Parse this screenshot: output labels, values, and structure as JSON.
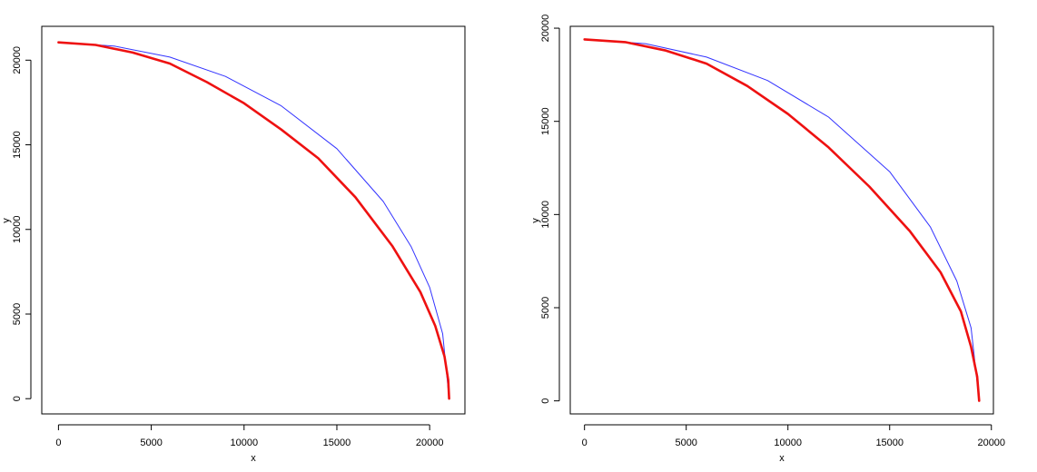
{
  "chart_data": [
    {
      "type": "line",
      "xlabel": "x",
      "ylabel": "y",
      "xlim": [
        -900,
        21900
      ],
      "ylim": [
        -900,
        22000
      ],
      "xticks": [
        0,
        5000,
        10000,
        15000,
        20000
      ],
      "xtick_labels": [
        "0",
        "5000",
        "10000",
        "15000",
        "20000"
      ],
      "yticks": [
        0,
        5000,
        10000,
        15000,
        20000
      ],
      "ytick_labels": [
        "0",
        "5000",
        "10000",
        "15000",
        "20000"
      ],
      "grid": false,
      "series": [
        {
          "color": "#3333ff",
          "style": "thin",
          "x": [
            0,
            3000,
            6000,
            9000,
            12000,
            15000,
            17500,
            19000,
            20000,
            20700,
            21050
          ],
          "y": [
            21050,
            20835,
            20180,
            19040,
            17300,
            14770,
            11650,
            8990,
            6570,
            3830,
            0
          ]
        },
        {
          "color": "#ee1111",
          "style": "thick",
          "x": [
            0,
            2000,
            4000,
            6000,
            8000,
            10000,
            12000,
            14000,
            16000,
            18000,
            19500,
            20300,
            20800,
            21000,
            21050
          ],
          "y": [
            21050,
            20900,
            20450,
            19800,
            18700,
            17450,
            15900,
            14200,
            11900,
            9000,
            6300,
            4300,
            2500,
            1100,
            0
          ]
        }
      ]
    },
    {
      "type": "line",
      "xlabel": "x",
      "ylabel": "y",
      "xlim": [
        -700,
        20100
      ],
      "ylim": [
        -700,
        20100
      ],
      "xticks": [
        0,
        5000,
        10000,
        15000,
        20000
      ],
      "xtick_labels": [
        "0",
        "5000",
        "10000",
        "15000",
        "20000"
      ],
      "yticks": [
        0,
        5000,
        10000,
        15000,
        20000
      ],
      "ytick_labels": [
        "0",
        "5000",
        "10000",
        "15000",
        "20000"
      ],
      "grid": false,
      "series": [
        {
          "color": "#3333ff",
          "style": "thin",
          "x": [
            0,
            3000,
            6000,
            9000,
            12000,
            15000,
            17000,
            18300,
            19000,
            19400
          ],
          "y": [
            19400,
            19170,
            18450,
            17190,
            15230,
            12300,
            9340,
            6430,
            3920,
            0
          ]
        },
        {
          "color": "#ee1111",
          "style": "thick",
          "x": [
            0,
            2000,
            4000,
            6000,
            8000,
            10000,
            12000,
            14000,
            16000,
            17500,
            18500,
            19000,
            19300,
            19400
          ],
          "y": [
            19400,
            19250,
            18800,
            18100,
            16900,
            15400,
            13600,
            11500,
            9100,
            6900,
            4800,
            2900,
            1300,
            0
          ]
        }
      ]
    }
  ]
}
